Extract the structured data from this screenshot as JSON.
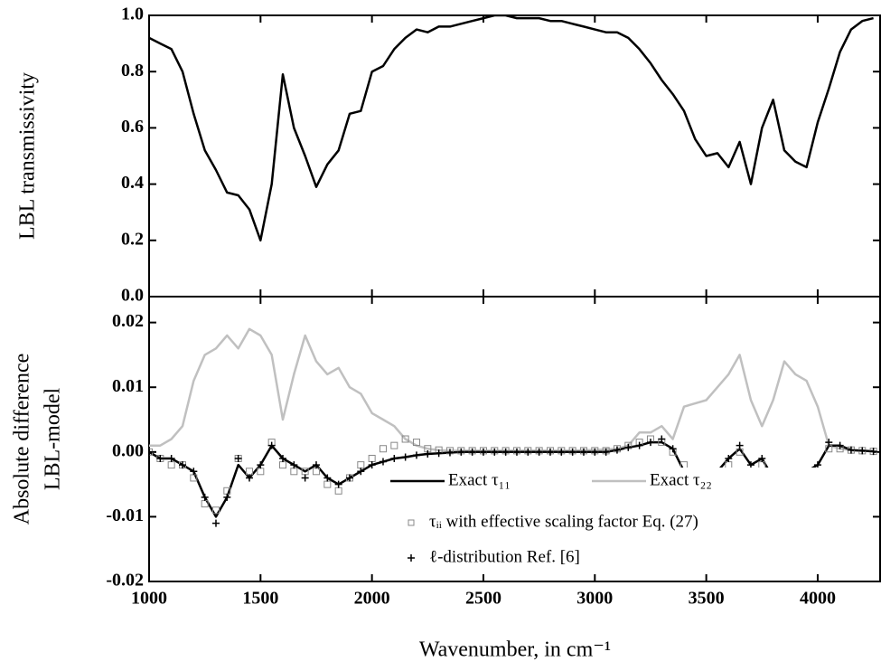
{
  "chart_data": [
    {
      "type": "line",
      "ylabel": "LBL transmissivity",
      "x": [
        1000,
        1050,
        1100,
        1150,
        1200,
        1250,
        1300,
        1350,
        1400,
        1450,
        1500,
        1550,
        1600,
        1650,
        1700,
        1750,
        1800,
        1850,
        1900,
        1950,
        2000,
        2050,
        2100,
        2150,
        2200,
        2250,
        2300,
        2350,
        2400,
        2450,
        2500,
        2550,
        2600,
        2650,
        2700,
        2750,
        2800,
        2850,
        2900,
        2950,
        3000,
        3050,
        3100,
        3150,
        3200,
        3250,
        3300,
        3350,
        3400,
        3450,
        3500,
        3550,
        3600,
        3650,
        3700,
        3750,
        3800,
        3850,
        3900,
        3950,
        4000,
        4050,
        4100,
        4150,
        4200,
        4250
      ],
      "series": [
        {
          "color": "#000000",
          "width": 2.5,
          "values": [
            0.92,
            0.9,
            0.88,
            0.8,
            0.65,
            0.52,
            0.45,
            0.37,
            0.36,
            0.31,
            0.2,
            0.4,
            0.79,
            0.6,
            0.5,
            0.39,
            0.47,
            0.52,
            0.65,
            0.66,
            0.8,
            0.82,
            0.88,
            0.92,
            0.95,
            0.94,
            0.96,
            0.96,
            0.97,
            0.98,
            0.99,
            1.0,
            1.0,
            0.99,
            0.99,
            0.99,
            0.98,
            0.98,
            0.97,
            0.96,
            0.95,
            0.94,
            0.94,
            0.92,
            0.88,
            0.83,
            0.77,
            0.72,
            0.66,
            0.56,
            0.5,
            0.51,
            0.46,
            0.55,
            0.4,
            0.6,
            0.7,
            0.52,
            0.48,
            0.46,
            0.62,
            0.74,
            0.87,
            0.95,
            0.98,
            0.99
          ]
        }
      ],
      "xlim": [
        1000,
        4284
      ],
      "xticks": [
        1000,
        1500,
        2000,
        2500,
        3000,
        3500,
        4000
      ],
      "ylim": [
        0,
        1.0
      ],
      "yticks": [
        {
          "value": 0,
          "label": "0.0"
        },
        0.2,
        0.4,
        0.6,
        0.8,
        {
          "value": 1,
          "label": "1.0"
        }
      ]
    },
    {
      "type": "line",
      "ylabel": [
        "Absolute difference",
        "LBL-model"
      ],
      "xlabel": "Wavenumber, in cm⁻¹",
      "x": [
        1000,
        1050,
        1100,
        1150,
        1200,
        1250,
        1300,
        1350,
        1400,
        1450,
        1500,
        1550,
        1600,
        1650,
        1700,
        1750,
        1800,
        1850,
        1900,
        1950,
        2000,
        2050,
        2100,
        2150,
        2200,
        2250,
        2300,
        2350,
        2400,
        2450,
        2500,
        2550,
        2600,
        2650,
        2700,
        2750,
        2800,
        2850,
        2900,
        2950,
        3000,
        3050,
        3100,
        3150,
        3200,
        3250,
        3300,
        3350,
        3400,
        3450,
        3500,
        3550,
        3600,
        3650,
        3700,
        3750,
        3800,
        3850,
        3900,
        3950,
        4000,
        4050,
        4100,
        4150,
        4200,
        4250
      ],
      "series": [
        {
          "name": "Exact τ₁₁",
          "color": "#000000",
          "width": 2.5,
          "marker": "none",
          "values": [
            0,
            -0.001,
            -0.001,
            -0.002,
            -0.003,
            -0.007,
            -0.01,
            -0.007,
            -0.002,
            -0.004,
            -0.002,
            0.001,
            -0.001,
            -0.002,
            -0.003,
            -0.002,
            -0.004,
            -0.005,
            -0.004,
            -0.003,
            -0.002,
            -0.0015,
            -0.001,
            -0.0008,
            -0.0005,
            -0.0003,
            -0.0002,
            -0.0001,
            0,
            0,
            0,
            0,
            0,
            0,
            0,
            0,
            0,
            0,
            0,
            0,
            0,
            0,
            0.0003,
            0.0007,
            0.001,
            0.0015,
            0.0015,
            0.0005,
            -0.003,
            -0.003,
            -0.004,
            -0.003,
            -0.001,
            0.0005,
            -0.002,
            -0.001,
            -0.004,
            -0.003,
            -0.003,
            -0.003,
            -0.002,
            0.001,
            0.001,
            0.0003,
            0.0002,
            0.0001
          ]
        },
        {
          "name": "Exact τ₂₂",
          "color": "#c0c0c0",
          "width": 2.5,
          "marker": "none",
          "values": [
            0.001,
            0.001,
            0.002,
            0.004,
            0.011,
            0.015,
            0.016,
            0.018,
            0.016,
            0.019,
            0.018,
            0.015,
            0.005,
            0.012,
            0.018,
            0.014,
            0.012,
            0.013,
            0.01,
            0.009,
            0.006,
            0.005,
            0.004,
            0.002,
            0.001,
            0.0005,
            0.0003,
            0.0002,
            0.0002,
            0.0002,
            0.0002,
            0.0002,
            0.0002,
            0.0002,
            0.0002,
            0.0002,
            0.0002,
            0.0002,
            0.0002,
            0.0003,
            0.0003,
            0.0004,
            0.0005,
            0.001,
            0.003,
            0.003,
            0.004,
            0.002,
            0.007,
            0.0075,
            0.008,
            0.01,
            0.012,
            0.015,
            0.008,
            0.004,
            0.008,
            0.014,
            0.012,
            0.011,
            0.007,
            0.001,
            0.0005,
            0.0003,
            0.0002,
            0.0001
          ]
        },
        {
          "name": "τᵢᵢ with effective scaling factor Eq. (27)",
          "color": "#888888",
          "marker": "square",
          "values": [
            0,
            -0.001,
            -0.002,
            -0.002,
            -0.004,
            -0.008,
            -0.009,
            -0.006,
            -0.001,
            -0.003,
            -0.003,
            0.0015,
            -0.002,
            -0.003,
            -0.003,
            -0.003,
            -0.005,
            -0.006,
            -0.004,
            -0.002,
            -0.001,
            0.0005,
            0.001,
            0.002,
            0.0015,
            0.0005,
            0.0003,
            0.0002,
            0.0002,
            0.0002,
            0.0002,
            0.0002,
            0.0002,
            0.0002,
            0.0002,
            0.0002,
            0.0002,
            0.0002,
            0.0002,
            0.0002,
            0.0002,
            0.0002,
            0.0005,
            0.001,
            0.0015,
            0.002,
            0.0015,
            0,
            -0.002,
            -0.003,
            -0.005,
            -0.004,
            -0.002,
            0,
            -0.003,
            -0.002,
            -0.005,
            -0.004,
            -0.004,
            -0.004,
            -0.003,
            0.0005,
            0.0005,
            0.0003,
            0.0002,
            0.0001
          ]
        },
        {
          "name": "ℓ-distribution Ref. [6]",
          "color": "#000000",
          "marker": "plus",
          "values": [
            0,
            -0.001,
            -0.001,
            -0.002,
            -0.003,
            -0.007,
            -0.011,
            -0.007,
            -0.001,
            -0.004,
            -0.002,
            0.001,
            -0.001,
            -0.002,
            -0.004,
            -0.002,
            -0.004,
            -0.005,
            -0.004,
            -0.003,
            -0.002,
            -0.0015,
            -0.001,
            -0.0008,
            -0.0005,
            -0.0003,
            -0.0002,
            -0.0001,
            0,
            0,
            0,
            0,
            0,
            0,
            0,
            0,
            0,
            0,
            0,
            0,
            0,
            0,
            0.0003,
            0.0007,
            0.001,
            0.0015,
            0.002,
            0.0005,
            -0.003,
            -0.003,
            -0.005,
            -0.003,
            -0.001,
            0.001,
            -0.002,
            -0.001,
            -0.004,
            -0.003,
            -0.003,
            -0.003,
            -0.002,
            0.0015,
            0.001,
            0.0003,
            0.0002,
            0.0001
          ]
        }
      ],
      "xlim": [
        1000,
        4284
      ],
      "xticks": [
        1000,
        1500,
        2000,
        2500,
        3000,
        3500,
        4000
      ],
      "ylim": [
        -0.02,
        0.024
      ],
      "yticks": [
        -0.02,
        -0.01,
        {
          "value": 0,
          "label": "0.00"
        },
        0.01,
        0.02
      ]
    }
  ]
}
